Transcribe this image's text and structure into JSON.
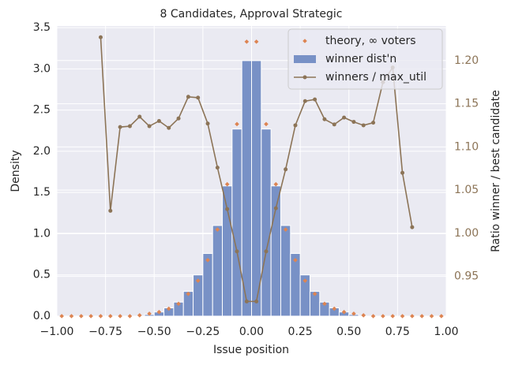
{
  "chart_data": {
    "type": "histogram",
    "title": "8 Candidates, Approval Strategic",
    "xlabel": "Issue position",
    "ylabel": "Density",
    "y2label": "Ratio winner / best candidate",
    "xlim": [
      -1,
      1
    ],
    "ylim": [
      0,
      3.52
    ],
    "y2lim": [
      0.904,
      1.24
    ],
    "xticks": [
      {
        "value": -1,
        "label": "−1.00"
      },
      {
        "value": -0.75,
        "label": "−0.75"
      },
      {
        "value": -0.5,
        "label": "−0.50"
      },
      {
        "value": -0.25,
        "label": "−0.25"
      },
      {
        "value": 0,
        "label": "0.00"
      },
      0.25,
      {
        "value": 0.5,
        "label": "0.50"
      },
      0.75,
      {
        "value": 1,
        "label": "1.00"
      }
    ],
    "yticks": [
      {
        "value": 0,
        "label": "0.0"
      },
      0.5,
      {
        "value": 1,
        "label": "1.0"
      },
      1.5,
      {
        "value": 2,
        "label": "2.0"
      },
      2.5,
      {
        "value": 3,
        "label": "3.0"
      },
      3.5
    ],
    "y2ticks": [
      0.95,
      {
        "value": 1,
        "label": "1.00"
      },
      1.05,
      {
        "value": 1.1,
        "label": "1.10"
      },
      1.15,
      {
        "value": 1.2,
        "label": "1.20"
      }
    ],
    "grid": true,
    "legend": "upper right",
    "series": [
      {
        "name": "theory, ∞ voters",
        "type": "scatter",
        "color": "#dd8452",
        "x": [
          -0.975,
          -0.925,
          -0.875,
          -0.825,
          -0.775,
          -0.725,
          -0.675,
          -0.625,
          -0.575,
          -0.525,
          -0.475,
          -0.425,
          -0.375,
          -0.325,
          -0.275,
          -0.225,
          -0.175,
          -0.125,
          -0.075,
          -0.025,
          0.025,
          0.075,
          0.125,
          0.175,
          0.225,
          0.275,
          0.325,
          0.375,
          0.425,
          0.475,
          0.525,
          0.575,
          0.625,
          0.675,
          0.725,
          0.775,
          0.825,
          0.875,
          0.925,
          0.975
        ],
        "values": [
          0,
          0,
          0,
          0,
          0,
          0,
          0,
          0,
          0.01,
          0.03,
          0.05,
          0.09,
          0.15,
          0.27,
          0.43,
          0.68,
          1.05,
          1.6,
          2.33,
          3.33,
          3.33,
          2.33,
          1.6,
          1.05,
          0.68,
          0.43,
          0.27,
          0.15,
          0.09,
          0.05,
          0.03,
          0.01,
          0,
          0,
          0,
          0,
          0,
          0,
          0,
          0
        ]
      },
      {
        "name": "winner dist'n",
        "type": "histogram",
        "color": "#7891c6",
        "bins": [
          -1,
          -0.95,
          -0.9,
          -0.85,
          -0.8,
          -0.75,
          -0.7,
          -0.65,
          -0.6,
          -0.55,
          -0.5,
          -0.45,
          -0.4,
          -0.35,
          -0.3,
          -0.25,
          -0.2,
          -0.15,
          -0.1,
          -0.05,
          0,
          0.05,
          0.1,
          0.15,
          0.2,
          0.25,
          0.3,
          0.35,
          0.4,
          0.45,
          0.5,
          0.55,
          0.6,
          0.65,
          0.7,
          0.75,
          0.8,
          0.85,
          0.9,
          0.95,
          1
        ],
        "values": [
          0,
          0,
          0,
          0,
          0,
          0,
          0,
          0,
          0,
          0.02,
          0.05,
          0.1,
          0.17,
          0.3,
          0.5,
          0.76,
          1.1,
          1.58,
          2.27,
          3.1,
          3.1,
          2.27,
          1.58,
          1.1,
          0.76,
          0.5,
          0.3,
          0.17,
          0.1,
          0.05,
          0.02,
          0,
          0,
          0,
          0,
          0,
          0,
          0,
          0,
          0
        ]
      },
      {
        "name": "winners / max_util",
        "type": "line",
        "axis": "y2",
        "color": "#8c7457",
        "x": [
          -0.775,
          -0.725,
          -0.675,
          -0.625,
          -0.575,
          -0.525,
          -0.475,
          -0.425,
          -0.375,
          -0.325,
          -0.275,
          -0.225,
          -0.175,
          -0.125,
          -0.075,
          -0.025,
          0.025,
          0.075,
          0.125,
          0.175,
          0.225,
          0.275,
          0.325,
          0.375,
          0.425,
          0.475,
          0.525,
          0.575,
          0.625,
          0.675,
          0.725,
          0.775,
          0.825
        ],
        "values": [
          1.227,
          1.026,
          1.123,
          1.124,
          1.135,
          1.124,
          1.13,
          1.122,
          1.133,
          1.158,
          1.157,
          1.127,
          1.076,
          1.028,
          0.979,
          0.921,
          0.921,
          0.979,
          1.029,
          1.074,
          1.125,
          1.153,
          1.155,
          1.132,
          1.126,
          1.134,
          1.129,
          1.125,
          1.128,
          1.175,
          1.192,
          1.07,
          1.007
        ]
      }
    ]
  }
}
